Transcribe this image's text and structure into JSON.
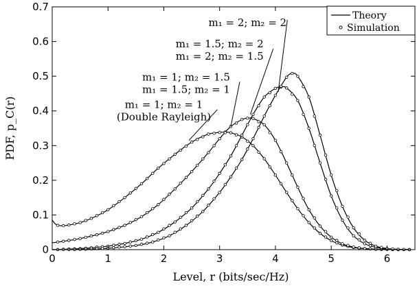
{
  "chart_data": {
    "type": "line",
    "title": "",
    "xlabel": "Level, r (bits/sec/Hz)",
    "ylabel": "PDF, p_C(r)",
    "xlim": [
      0,
      6.5
    ],
    "ylim": [
      0,
      0.7
    ],
    "x_ticks": [
      "0",
      "1",
      "2",
      "3",
      "4",
      "5",
      "6"
    ],
    "y_ticks": [
      "0",
      "0.1",
      "0.2",
      "0.3",
      "0.4",
      "0.5",
      "0.6",
      "0.7"
    ],
    "grid": false,
    "legend": {
      "position": "top-right",
      "entries": [
        {
          "label": "Theory",
          "marker": "line"
        },
        {
          "label": "Simulation",
          "marker": "circle"
        }
      ]
    },
    "series": [
      {
        "x": [
          0,
          0.05,
          0.1,
          0.2,
          0.3,
          0.5,
          0.7,
          1.0,
          1.3,
          1.6,
          1.9,
          2.2,
          2.5,
          2.8,
          3.0,
          3.1,
          3.2,
          3.4,
          3.6,
          3.8,
          4.0,
          4.2,
          4.4,
          4.6,
          4.8,
          5.0,
          5.2,
          5.4,
          5.6,
          5.8,
          6.0,
          6.2,
          6.4
        ],
        "y": [
          0.085,
          0.075,
          0.07,
          0.069,
          0.071,
          0.078,
          0.09,
          0.115,
          0.15,
          0.19,
          0.235,
          0.275,
          0.31,
          0.333,
          0.338,
          0.339,
          0.337,
          0.325,
          0.3,
          0.262,
          0.215,
          0.165,
          0.118,
          0.078,
          0.047,
          0.026,
          0.013,
          0.006,
          0.003,
          0.0013,
          0.0006,
          0.0002,
          0.0001
        ]
      },
      {
        "x": [
          0,
          0.2,
          0.5,
          0.8,
          1.0,
          1.3,
          1.6,
          1.9,
          2.2,
          2.5,
          2.8,
          3.0,
          3.2,
          3.4,
          3.5,
          3.6,
          3.8,
          4.0,
          4.2,
          4.4,
          4.6,
          4.8,
          5.0,
          5.2,
          5.4,
          5.6,
          5.8,
          6.0,
          6.2,
          6.4
        ],
        "y": [
          0.02,
          0.024,
          0.032,
          0.043,
          0.052,
          0.07,
          0.095,
          0.13,
          0.175,
          0.225,
          0.28,
          0.32,
          0.355,
          0.375,
          0.379,
          0.378,
          0.36,
          0.315,
          0.25,
          0.18,
          0.115,
          0.068,
          0.036,
          0.017,
          0.0075,
          0.003,
          0.001,
          0.0004,
          0.0001,
          0.0
        ]
      },
      {
        "x": [
          0,
          0.5,
          1.0,
          1.3,
          1.6,
          1.9,
          2.2,
          2.5,
          2.8,
          3.0,
          3.2,
          3.4,
          3.6,
          3.8,
          4.0,
          4.1,
          4.2,
          4.4,
          4.6,
          4.8,
          5.0,
          5.2,
          5.4,
          5.6,
          5.8,
          6.0,
          6.2,
          6.4
        ],
        "y": [
          0.0,
          0.003,
          0.01,
          0.018,
          0.03,
          0.05,
          0.08,
          0.12,
          0.175,
          0.22,
          0.27,
          0.33,
          0.39,
          0.44,
          0.465,
          0.469,
          0.466,
          0.43,
          0.35,
          0.25,
          0.155,
          0.085,
          0.04,
          0.017,
          0.0065,
          0.0023,
          0.0007,
          0.0002
        ]
      },
      {
        "x": [
          0,
          0.5,
          1.0,
          1.5,
          1.8,
          2.1,
          2.4,
          2.7,
          3.0,
          3.2,
          3.4,
          3.6,
          3.8,
          4.0,
          4.2,
          4.3,
          4.4,
          4.6,
          4.8,
          5.0,
          5.2,
          5.4,
          5.6,
          5.8,
          6.0,
          6.2,
          6.4
        ],
        "y": [
          0.0,
          0.0008,
          0.004,
          0.012,
          0.022,
          0.04,
          0.07,
          0.11,
          0.165,
          0.21,
          0.26,
          0.32,
          0.385,
          0.445,
          0.497,
          0.508,
          0.5,
          0.44,
          0.33,
          0.215,
          0.125,
          0.063,
          0.027,
          0.01,
          0.0033,
          0.001,
          0.0003
        ]
      }
    ],
    "annotations": [
      {
        "lines": [
          "m₁ = 1; m₂ = 1",
          "(Double Rayleigh)"
        ],
        "anchor": [
          2.0,
          0.4
        ],
        "target": [
          2.45,
          0.315
        ]
      },
      {
        "lines": [
          "m₁ = 1; m₂ = 1.5",
          "m₁ = 1.5; m₂ = 1"
        ],
        "anchor": [
          2.4,
          0.48
        ],
        "target": [
          3.2,
          0.355
        ]
      },
      {
        "lines": [
          "m₁ = 1.5; m₂ = 2",
          "m₁ = 2; m₂ = 1.5"
        ],
        "anchor": [
          3.0,
          0.575
        ],
        "target": [
          3.55,
          0.39
        ]
      },
      {
        "lines": [
          "m₁ = 2; m₂ = 2"
        ],
        "anchor": [
          3.5,
          0.655
        ],
        "target": [
          4.05,
          0.455
        ]
      }
    ]
  }
}
